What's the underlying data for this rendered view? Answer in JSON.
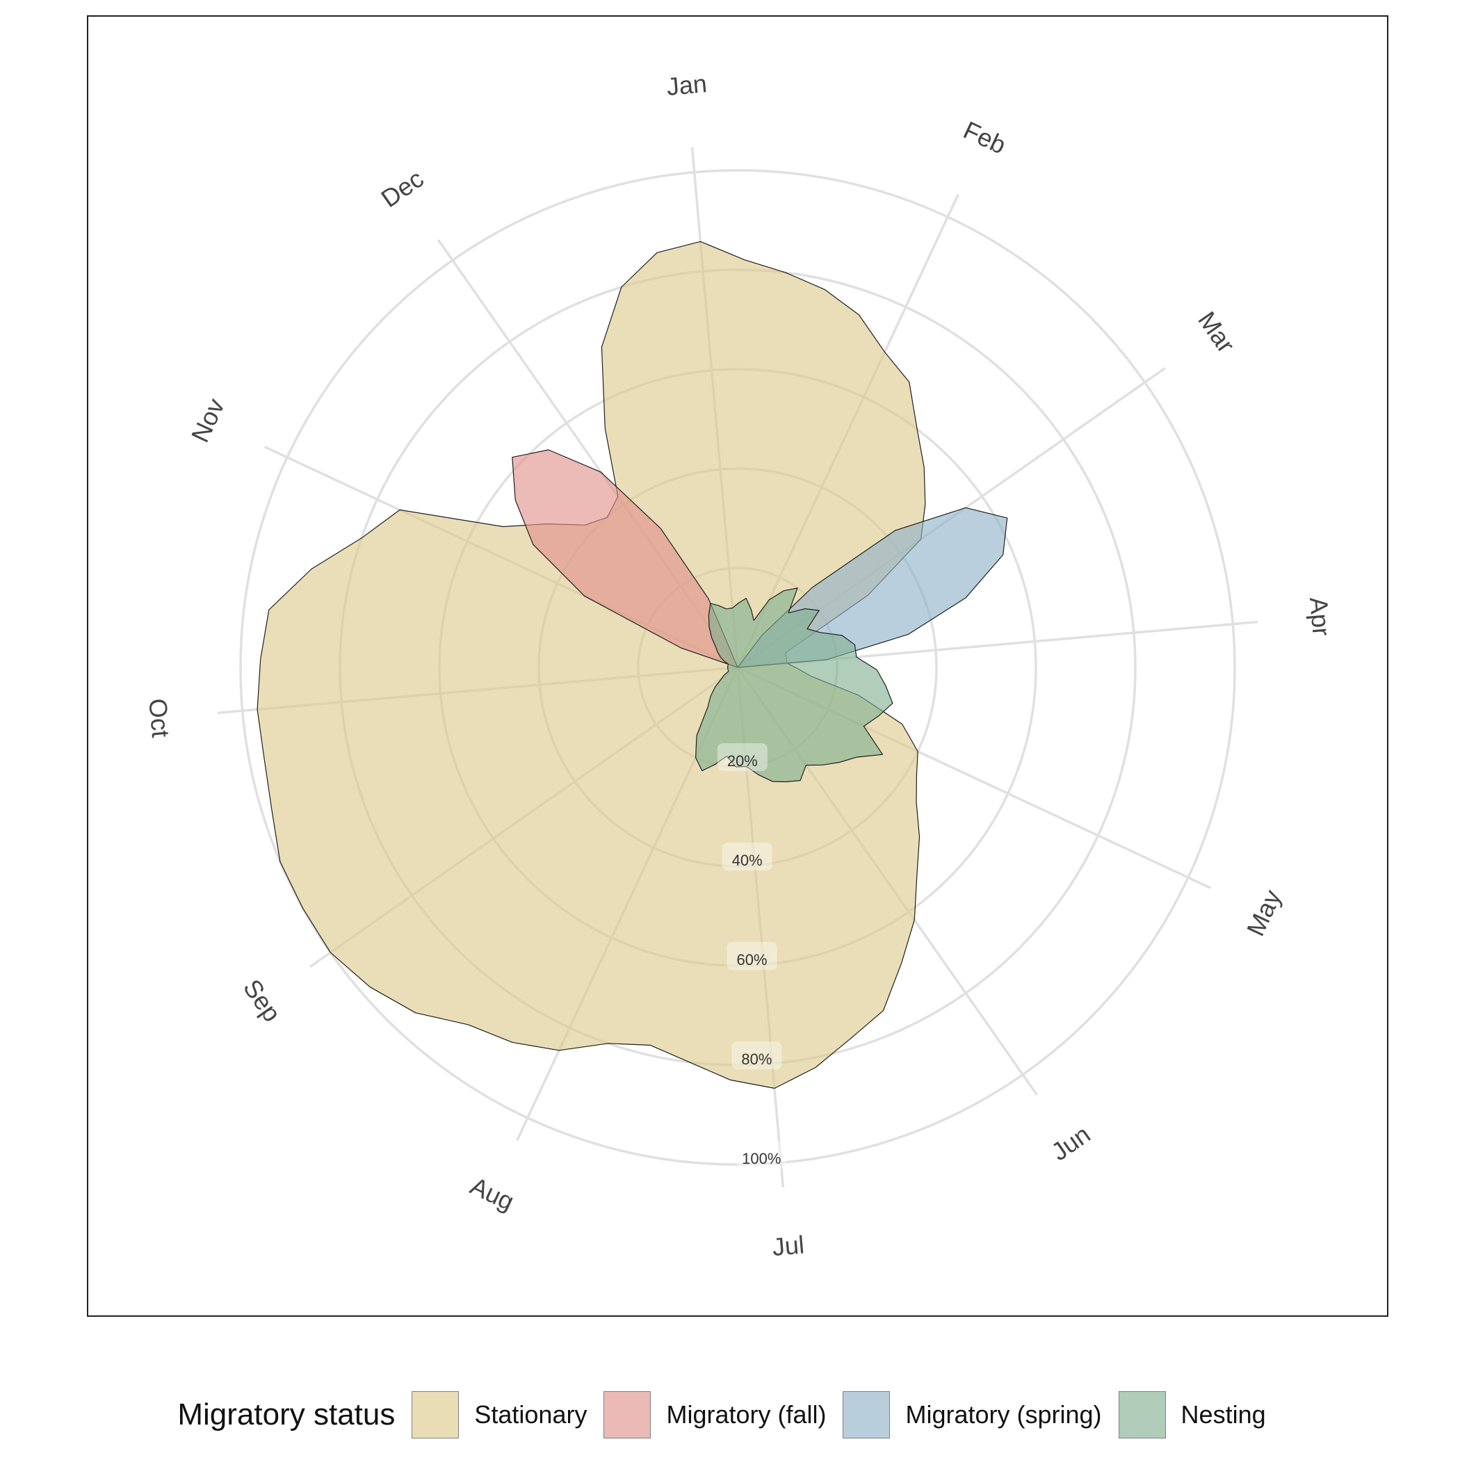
{
  "chart_data": {
    "type": "area",
    "subtype": "polar",
    "title": "",
    "xlabel": "",
    "ylabel": "",
    "angle_axis_labels": [
      "Jan",
      "Feb",
      "Mar",
      "Apr",
      "May",
      "Jun",
      "Jul",
      "Aug",
      "Sep",
      "Oct",
      "Nov",
      "Dec"
    ],
    "radial_axis": {
      "tick_labels": [
        "20%",
        "40%",
        "60%",
        "80%",
        "100%"
      ],
      "ticks": [
        0.2,
        0.4,
        0.6,
        0.8,
        1.0
      ],
      "range": [
        0,
        1
      ]
    },
    "grid": true,
    "legend": {
      "title": "Migratory status",
      "position": "bottom",
      "items": [
        "Stationary",
        "Migratory (fall)",
        "Migratory (spring)",
        "Nesting"
      ]
    },
    "series": [
      {
        "name": "Stationary",
        "color": "#dcc98a",
        "x": [
          0,
          0.2,
          0.4,
          0.6,
          0.8,
          1.0,
          1.2,
          1.4,
          1.6,
          1.8,
          2.0,
          2.2,
          2.4,
          2.6,
          2.8,
          3.0,
          3.2,
          3.4,
          3.6,
          3.8,
          4.0,
          4.2,
          4.4,
          4.6,
          4.8,
          5.0,
          5.2,
          5.4,
          5.6,
          5.8,
          6.0,
          6.2,
          6.4,
          6.6,
          6.8,
          7.0,
          7.2,
          7.4,
          7.6,
          7.8,
          8.0,
          8.2,
          8.4,
          8.6,
          8.8,
          9.0,
          9.2,
          9.4,
          9.6,
          9.8,
          10.0,
          10.2,
          10.4,
          10.6,
          10.8,
          11.0,
          11.2,
          11.4,
          11.6,
          11.8
        ],
        "values": [
          0.86,
          0.82,
          0.8,
          0.78,
          0.75,
          0.7,
          0.67,
          0.6,
          0.55,
          0.5,
          0.45,
          0.3,
          0.15,
          0.1,
          0.1,
          0.1,
          0.12,
          0.15,
          0.25,
          0.35,
          0.4,
          0.42,
          0.45,
          0.5,
          0.55,
          0.62,
          0.68,
          0.75,
          0.78,
          0.82,
          0.85,
          0.83,
          0.8,
          0.78,
          0.8,
          0.85,
          0.88,
          0.9,
          0.95,
          0.98,
          1.0,
          1.0,
          1.0,
          0.98,
          0.97,
          0.97,
          0.96,
          0.95,
          0.88,
          0.8,
          0.75,
          0.55,
          0.48,
          0.42,
          0.4,
          0.42,
          0.55,
          0.7,
          0.8,
          0.85
        ]
      },
      {
        "name": "Migratory (fall)",
        "color": "#e0908a",
        "x": [
          9.6,
          9.8,
          10.0,
          10.2,
          10.4,
          10.6,
          10.8,
          11.0,
          11.2,
          11.4,
          11.6
        ],
        "values": [
          0.0,
          0.12,
          0.34,
          0.48,
          0.56,
          0.62,
          0.58,
          0.48,
          0.32,
          0.15,
          0.0
        ]
      },
      {
        "name": "Migratory (spring)",
        "color": "#8fb1c9",
        "x": [
          1.2,
          1.4,
          1.6,
          1.8,
          2.0,
          2.2,
          2.4,
          2.6,
          2.8,
          3.0,
          3.2
        ],
        "values": [
          0.0,
          0.08,
          0.22,
          0.42,
          0.56,
          0.62,
          0.58,
          0.48,
          0.35,
          0.18,
          0.0
        ]
      },
      {
        "name": "Nesting",
        "color": "#7fb08f",
        "x": [
          0,
          0.2,
          0.4,
          0.6,
          0.8,
          1.0,
          1.2,
          1.4,
          1.6,
          1.8,
          2.0,
          2.2,
          2.4,
          2.6,
          2.8,
          3.0,
          3.2,
          3.4,
          3.6,
          3.8,
          4.0,
          4.2,
          4.4,
          4.6,
          4.8,
          5.0,
          5.2,
          5.4,
          5.6,
          5.8,
          6.0,
          6.2,
          6.4,
          6.6,
          6.8,
          7.0,
          7.2,
          7.4,
          7.6,
          7.8,
          8.0,
          8.2,
          8.4,
          8.6,
          8.8,
          9.0,
          9.2,
          9.4,
          9.6,
          9.8,
          10.0,
          10.2,
          10.4,
          10.6,
          10.8,
          11.0,
          11.2,
          11.4,
          11.6,
          11.8
        ],
        "values": [
          0.12,
          0.13,
          0.14,
          0.12,
          0.1,
          0.15,
          0.18,
          0.2,
          0.15,
          0.18,
          0.2,
          0.16,
          0.18,
          0.22,
          0.24,
          0.24,
          0.28,
          0.3,
          0.32,
          0.3,
          0.28,
          0.34,
          0.3,
          0.28,
          0.26,
          0.24,
          0.26,
          0.25,
          0.24,
          0.22,
          0.2,
          0.2,
          0.18,
          0.2,
          0.22,
          0.2,
          0.16,
          0.1,
          0.08,
          0.06,
          0.04,
          0.03,
          0.02,
          0.02,
          0.02,
          0.02,
          0.02,
          0.02,
          0.02,
          0.02,
          0.03,
          0.04,
          0.05,
          0.06,
          0.08,
          0.1,
          0.12,
          0.14,
          0.13,
          0.12
        ]
      }
    ]
  }
}
